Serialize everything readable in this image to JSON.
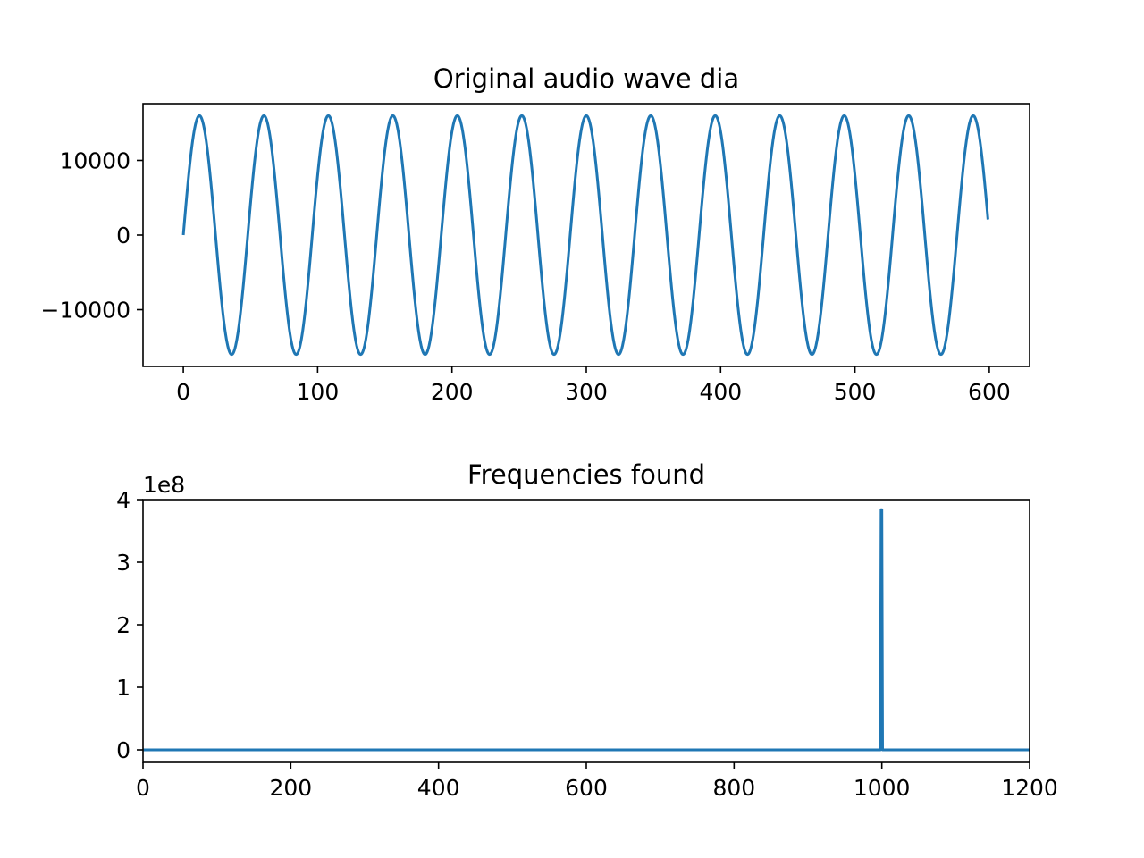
{
  "chart_data": [
    {
      "type": "line",
      "title": "Original audio wave dia",
      "xlabel": "",
      "ylabel": "",
      "xlim": [
        -30,
        630
      ],
      "ylim": [
        -17600,
        17600
      ],
      "xticks": [
        0,
        100,
        200,
        300,
        400,
        500,
        600
      ],
      "xtick_labels": [
        "0",
        "100",
        "200",
        "300",
        "400",
        "500",
        "600"
      ],
      "yticks": [
        -10000,
        0,
        10000
      ],
      "ytick_labels": [
        "−10000",
        "0",
        "10000"
      ],
      "grid": false,
      "series": [
        {
          "color": "#1f77b4",
          "amplitude": 16000,
          "period": 48,
          "x_start": 0,
          "x_end": 599,
          "shape": "sine"
        }
      ]
    },
    {
      "type": "line",
      "title": "Frequencies found",
      "xlabel": "",
      "ylabel": "",
      "y_offset_label": "1e8",
      "xlim": [
        0,
        1200
      ],
      "ylim": [
        -0.2,
        4.0
      ],
      "xticks": [
        0,
        200,
        400,
        600,
        800,
        1000,
        1200
      ],
      "xtick_labels": [
        "0",
        "200",
        "400",
        "600",
        "800",
        "1000",
        "1200"
      ],
      "yticks": [
        0,
        1,
        2,
        3,
        4
      ],
      "ytick_labels": [
        "0",
        "1",
        "2",
        "3",
        "4"
      ],
      "grid": false,
      "series": [
        {
          "color": "#1f77b4",
          "x": [
            0,
            998,
            999,
            1000,
            1001,
            1200
          ],
          "y": [
            0,
            0,
            3.84,
            3.84,
            0,
            0
          ]
        }
      ]
    }
  ]
}
